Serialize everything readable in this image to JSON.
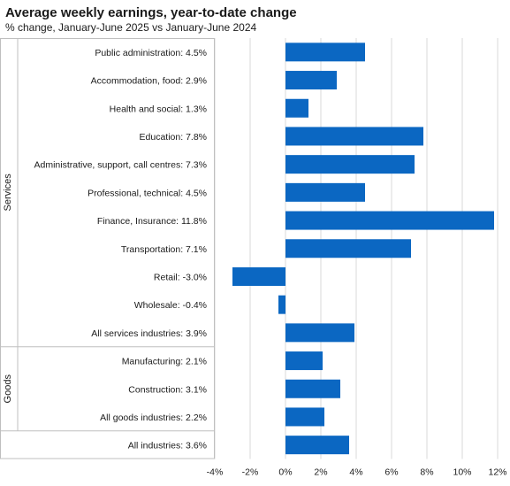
{
  "chart_data": {
    "type": "bar",
    "orientation": "horizontal",
    "title": "Average weekly earnings, year-to-date change",
    "subtitle": "% change, January-June 2025 vs January-June 2024",
    "categories": [
      "Public administration: 4.5%",
      "Accommodation, food: 2.9%",
      "Health and social: 1.3%",
      "Education: 7.8%",
      "Administrative, support, call centres: 7.3%",
      "Professional, technical: 4.5%",
      "Finance, Insurance: 11.8%",
      "Transportation: 7.1%",
      "Retail: -3.0%",
      "Wholesale: -0.4%",
      "All services industries: 3.9%",
      "Manufacturing: 2.1%",
      "Construction: 3.1%",
      "All goods industries: 2.2%",
      "All industries: 3.6%"
    ],
    "values": [
      4.5,
      2.9,
      1.3,
      7.8,
      7.3,
      4.5,
      11.8,
      7.1,
      -3.0,
      -0.4,
      3.9,
      2.1,
      3.1,
      2.2,
      3.6
    ],
    "groups": [
      {
        "label": "Services",
        "from": 0,
        "to": 10
      },
      {
        "label": "Goods",
        "from": 11,
        "to": 13
      },
      {
        "label": "",
        "from": 14,
        "to": 14
      }
    ],
    "x_ticks": [
      "-4%",
      "-2%",
      "0%",
      "2%",
      "4%",
      "6%",
      "8%",
      "10%",
      "12%"
    ],
    "xlim": [
      -4,
      12
    ],
    "grid": "vertical",
    "legend": "none",
    "colors": {
      "bar": "#0b67c2",
      "grid": "#d9d9d9",
      "border": "#bfbfbf"
    }
  }
}
